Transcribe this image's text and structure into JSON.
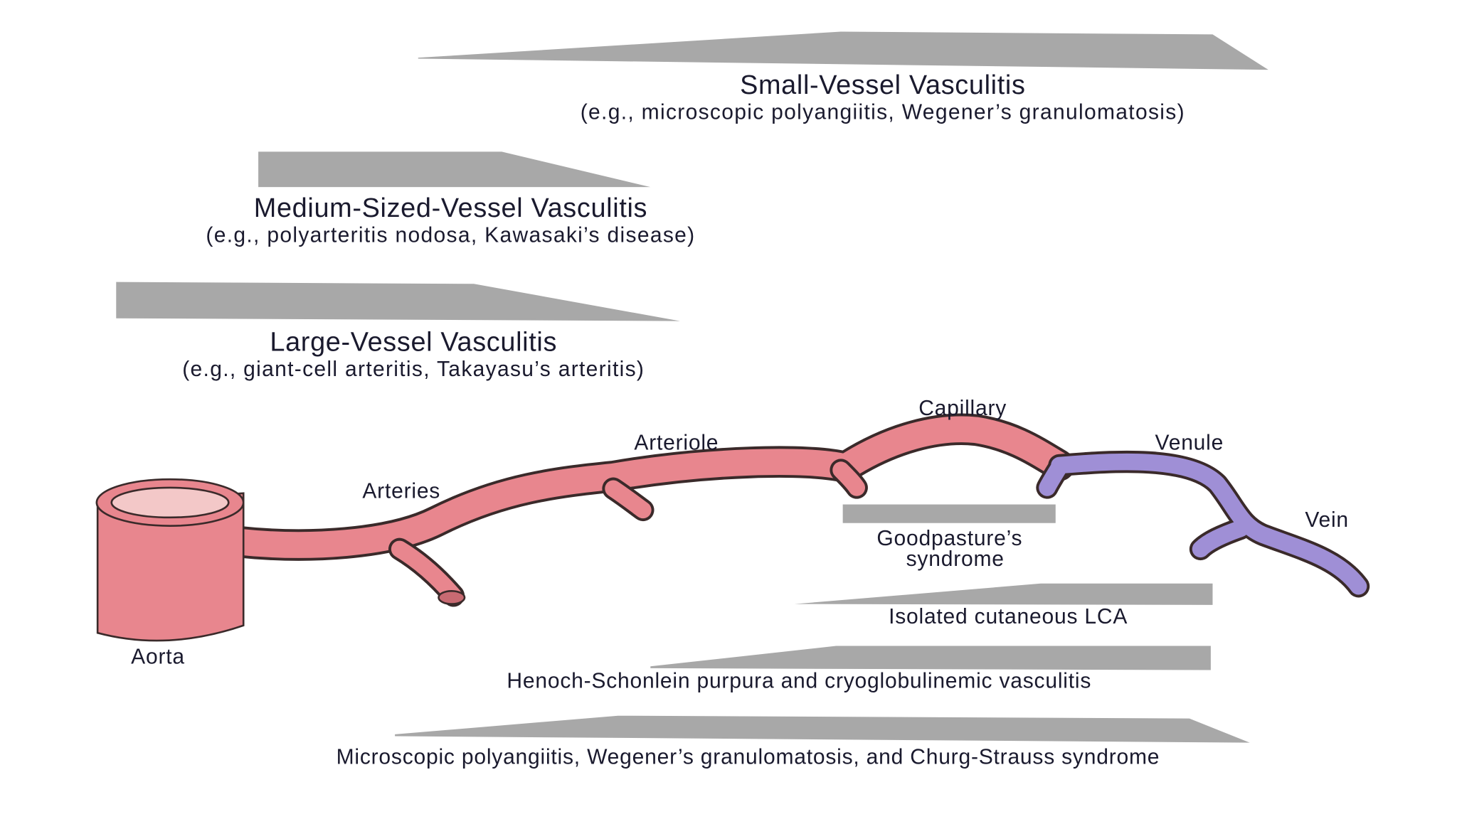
{
  "categories": [
    {
      "title": "Small-Vessel Vasculitis",
      "examples": "(e.g., microscopic polyangiitis, Wegener’s granulomatosis)"
    },
    {
      "title": "Medium-Sized-Vessel Vasculitis",
      "examples": "(e.g., polyarteritis nodosa, Kawasaki’s disease)"
    },
    {
      "title": "Large-Vessel Vasculitis",
      "examples": "(e.g., giant-cell arteritis, Takayasu’s arteritis)"
    }
  ],
  "vessels": [
    "Aorta",
    "Arteries",
    "Arteriole",
    "Capillary",
    "Venule",
    "Vein"
  ],
  "diseases": [
    {
      "lines": [
        "Goodpasture’s",
        "syndrome"
      ]
    },
    {
      "lines": [
        "Isolated cutaneous LCA"
      ]
    },
    {
      "lines": [
        "Henoch-Schonlein purpura and cryoglobulinemic vasculitis"
      ]
    },
    {
      "lines": [
        "Microscopic polyangiitis, Wegener’s granulomatosis, and Churg-Strauss syndrome"
      ]
    }
  ]
}
